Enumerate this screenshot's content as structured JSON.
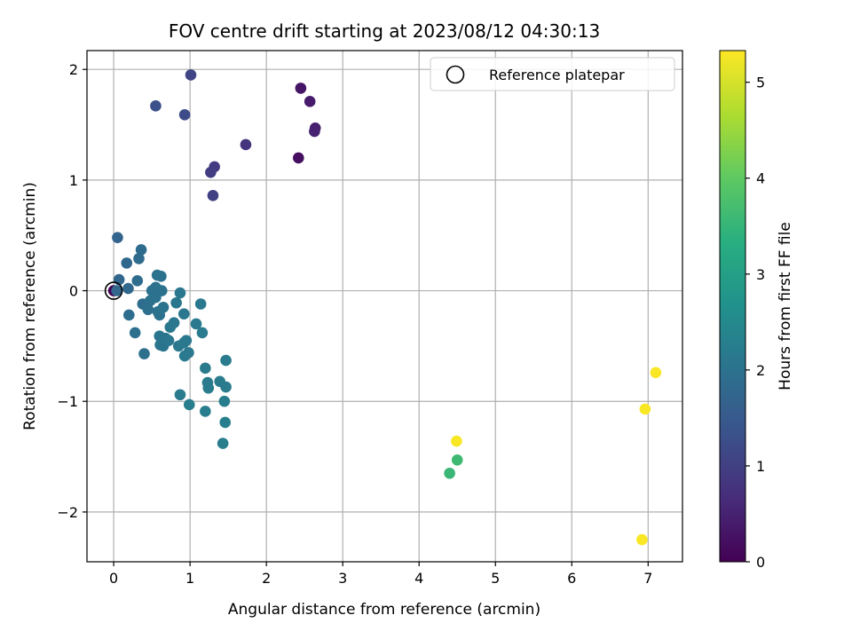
{
  "chart_data": {
    "type": "scatter",
    "title": "FOV centre drift starting at 2023/08/12 04:30:13",
    "xlabel": "Angular distance from reference (arcmin)",
    "ylabel": "Rotation from reference (arcmin)",
    "xlim": [
      -0.35,
      7.45
    ],
    "ylim": [
      -2.45,
      2.17
    ],
    "xticks": [
      0,
      1,
      2,
      3,
      4,
      5,
      6,
      7
    ],
    "yticks": [
      -2,
      -1,
      0,
      1,
      2
    ],
    "xtick_labels": [
      "0",
      "1",
      "2",
      "3",
      "4",
      "5",
      "6",
      "7"
    ],
    "ytick_labels": [
      "−2",
      "−1",
      "0",
      "1",
      "2"
    ],
    "grid": true,
    "legend": {
      "position": "top-right",
      "entries": [
        "Reference platepar"
      ]
    },
    "reference_point": {
      "x": 0,
      "y": 0,
      "label": "Reference platepar"
    },
    "colorbar": {
      "label": "Hours from first FF file",
      "range": [
        0,
        5.33
      ],
      "ticks": [
        0,
        1,
        2,
        3,
        4,
        5
      ],
      "tick_labels": [
        "0",
        "1",
        "2",
        "3",
        "4",
        "5"
      ],
      "colormap": "viridis"
    },
    "points": [
      {
        "x": 0.0,
        "y": 0.0,
        "t": 0.0
      },
      {
        "x": 2.42,
        "y": 1.2,
        "t": 0.2
      },
      {
        "x": 2.45,
        "y": 1.83,
        "t": 0.3
      },
      {
        "x": 2.57,
        "y": 1.71,
        "t": 0.4
      },
      {
        "x": 2.64,
        "y": 1.47,
        "t": 0.45
      },
      {
        "x": 2.63,
        "y": 1.44,
        "t": 0.5
      },
      {
        "x": 1.73,
        "y": 1.32,
        "t": 0.8
      },
      {
        "x": 1.32,
        "y": 1.12,
        "t": 0.9
      },
      {
        "x": 1.27,
        "y": 1.07,
        "t": 0.95
      },
      {
        "x": 1.3,
        "y": 0.86,
        "t": 1.0
      },
      {
        "x": 1.01,
        "y": 1.95,
        "t": 1.1
      },
      {
        "x": 0.93,
        "y": 1.59,
        "t": 1.2
      },
      {
        "x": 0.55,
        "y": 1.67,
        "t": 1.3
      },
      {
        "x": 0.05,
        "y": 0.48,
        "t": 1.7
      },
      {
        "x": 0.07,
        "y": 0.1,
        "t": 1.75
      },
      {
        "x": 0.04,
        "y": 0.0,
        "t": 1.75
      },
      {
        "x": 0.17,
        "y": 0.25,
        "t": 1.8
      },
      {
        "x": 0.19,
        "y": 0.02,
        "t": 1.8
      },
      {
        "x": 0.36,
        "y": 0.37,
        "t": 1.85
      },
      {
        "x": 0.33,
        "y": 0.29,
        "t": 1.85
      },
      {
        "x": 0.31,
        "y": 0.09,
        "t": 1.9
      },
      {
        "x": 0.38,
        "y": -0.12,
        "t": 1.9
      },
      {
        "x": 0.2,
        "y": -0.22,
        "t": 1.9
      },
      {
        "x": 0.28,
        "y": -0.38,
        "t": 1.95
      },
      {
        "x": 0.4,
        "y": -0.57,
        "t": 1.95
      },
      {
        "x": 0.45,
        "y": -0.17,
        "t": 1.95
      },
      {
        "x": 0.48,
        "y": -0.09,
        "t": 1.95
      },
      {
        "x": 0.5,
        "y": 0.0,
        "t": 2.0
      },
      {
        "x": 0.55,
        "y": 0.03,
        "t": 2.0
      },
      {
        "x": 0.57,
        "y": 0.14,
        "t": 2.0
      },
      {
        "x": 0.62,
        "y": 0.13,
        "t": 2.0
      },
      {
        "x": 0.63,
        "y": 0.0,
        "t": 2.0
      },
      {
        "x": 0.55,
        "y": -0.06,
        "t": 2.0
      },
      {
        "x": 0.58,
        "y": -0.19,
        "t": 2.0
      },
      {
        "x": 0.6,
        "y": -0.22,
        "t": 2.0
      },
      {
        "x": 0.65,
        "y": -0.15,
        "t": 2.05
      },
      {
        "x": 0.6,
        "y": -0.41,
        "t": 2.05
      },
      {
        "x": 0.61,
        "y": -0.49,
        "t": 2.05
      },
      {
        "x": 0.65,
        "y": -0.5,
        "t": 2.05
      },
      {
        "x": 0.68,
        "y": -0.43,
        "t": 2.05
      },
      {
        "x": 0.72,
        "y": -0.45,
        "t": 2.1
      },
      {
        "x": 0.74,
        "y": -0.33,
        "t": 2.1
      },
      {
        "x": 0.79,
        "y": -0.29,
        "t": 2.1
      },
      {
        "x": 0.82,
        "y": -0.11,
        "t": 2.1
      },
      {
        "x": 0.87,
        "y": -0.02,
        "t": 2.1
      },
      {
        "x": 0.92,
        "y": -0.21,
        "t": 2.1
      },
      {
        "x": 0.85,
        "y": -0.5,
        "t": 2.15
      },
      {
        "x": 0.92,
        "y": -0.47,
        "t": 2.15
      },
      {
        "x": 0.95,
        "y": -0.45,
        "t": 2.15
      },
      {
        "x": 0.93,
        "y": -0.59,
        "t": 2.15
      },
      {
        "x": 0.98,
        "y": -0.56,
        "t": 2.15
      },
      {
        "x": 1.08,
        "y": -0.3,
        "t": 2.15
      },
      {
        "x": 1.14,
        "y": -0.12,
        "t": 2.15
      },
      {
        "x": 1.16,
        "y": -0.38,
        "t": 2.2
      },
      {
        "x": 1.2,
        "y": -0.7,
        "t": 2.2
      },
      {
        "x": 1.23,
        "y": -0.83,
        "t": 2.2
      },
      {
        "x": 1.24,
        "y": -0.88,
        "t": 2.2
      },
      {
        "x": 1.39,
        "y": -0.82,
        "t": 2.2
      },
      {
        "x": 1.47,
        "y": -0.87,
        "t": 2.2
      },
      {
        "x": 1.47,
        "y": -0.63,
        "t": 2.2
      },
      {
        "x": 0.87,
        "y": -0.94,
        "t": 2.2
      },
      {
        "x": 0.99,
        "y": -1.03,
        "t": 2.25
      },
      {
        "x": 1.2,
        "y": -1.09,
        "t": 2.25
      },
      {
        "x": 1.45,
        "y": -1.0,
        "t": 2.25
      },
      {
        "x": 1.46,
        "y": -1.19,
        "t": 2.25
      },
      {
        "x": 1.43,
        "y": -1.38,
        "t": 2.25
      },
      {
        "x": 4.4,
        "y": -1.65,
        "t": 3.55
      },
      {
        "x": 4.5,
        "y": -1.53,
        "t": 3.6
      },
      {
        "x": 4.49,
        "y": -1.36,
        "t": 5.3
      },
      {
        "x": 6.92,
        "y": -2.25,
        "t": 5.3
      },
      {
        "x": 6.96,
        "y": -1.07,
        "t": 5.3
      },
      {
        "x": 7.1,
        "y": -0.74,
        "t": 5.3
      }
    ]
  }
}
